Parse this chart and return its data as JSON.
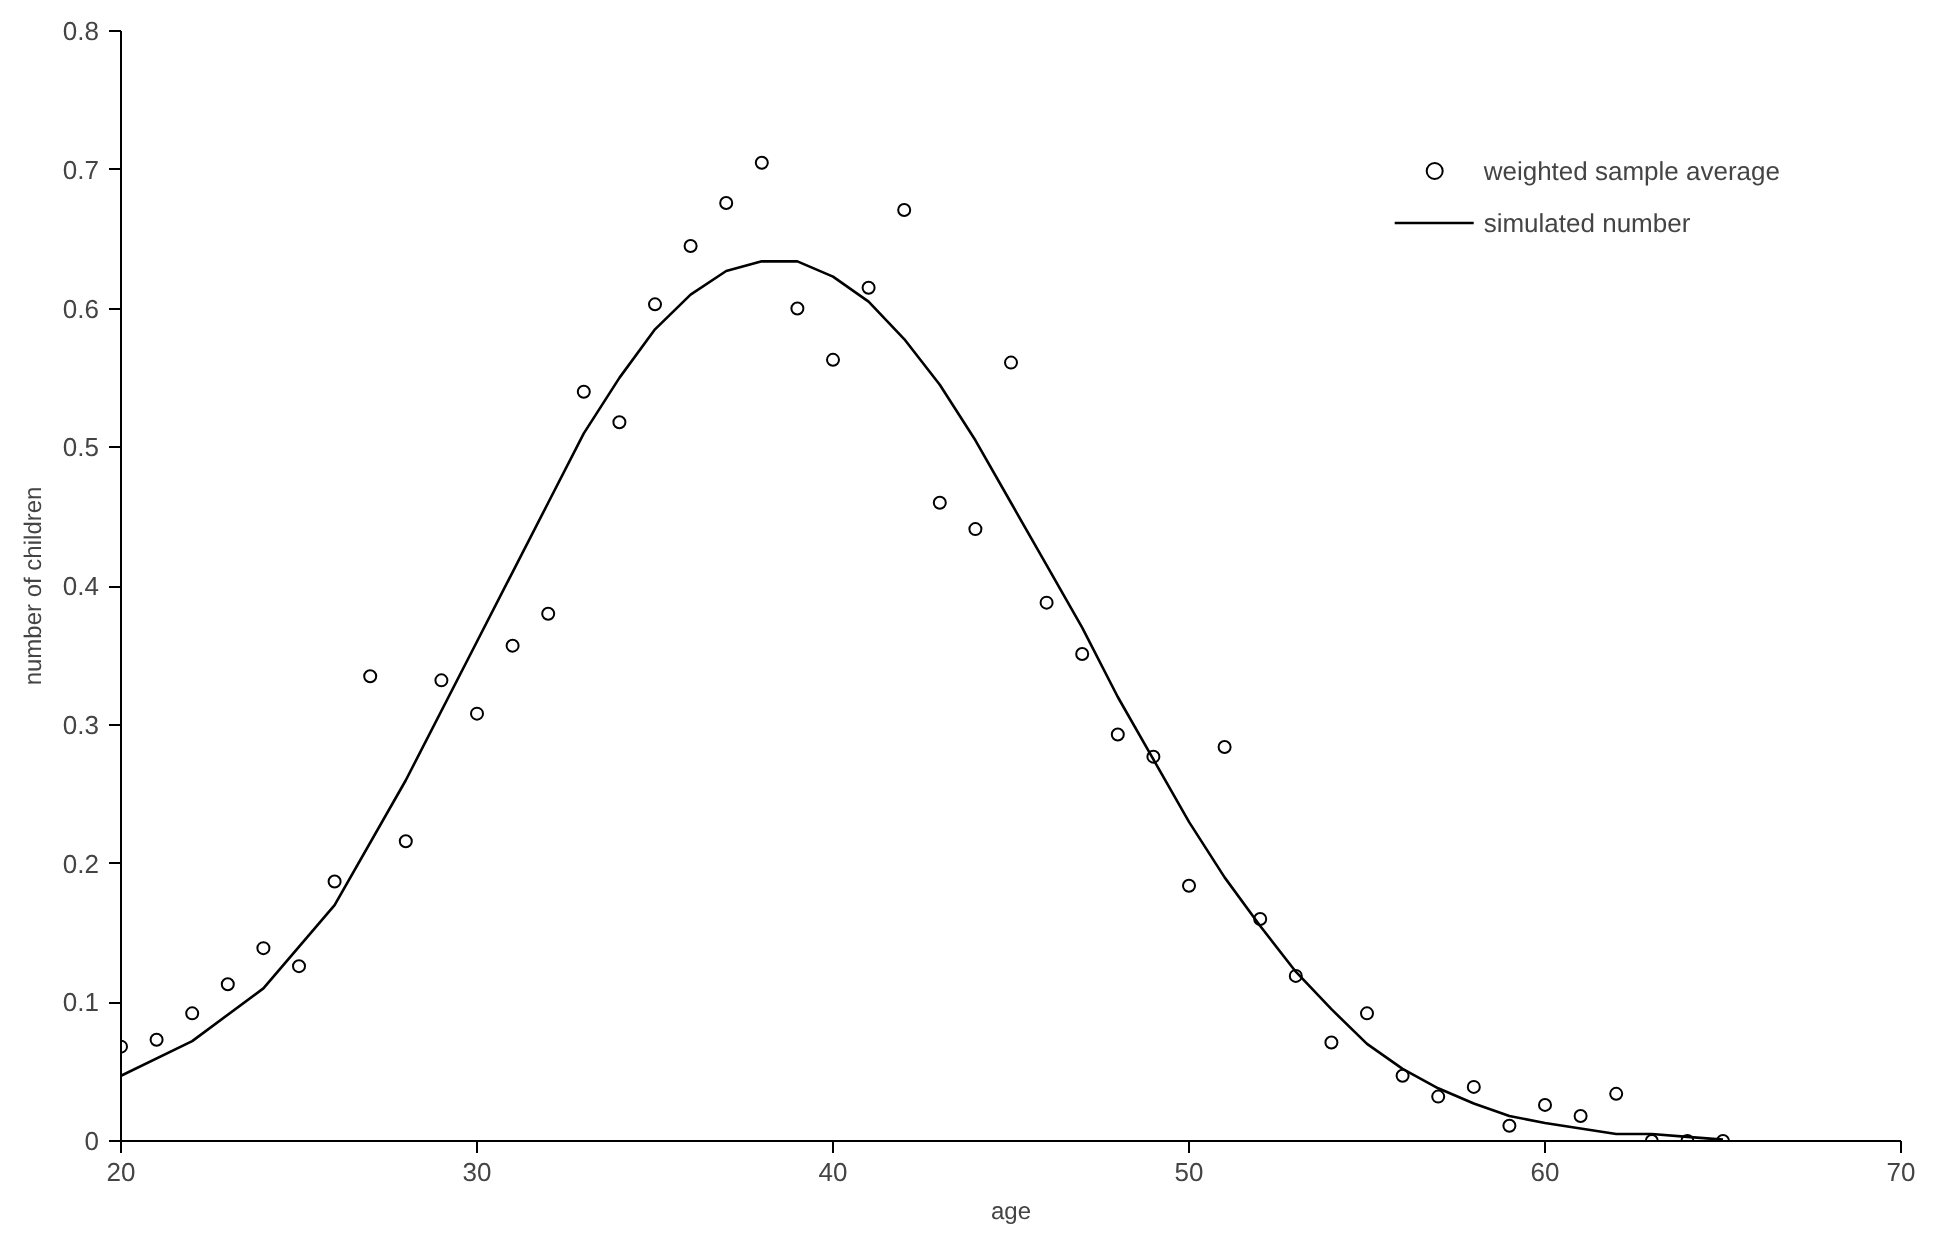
{
  "chart_data": {
    "type": "scatter",
    "xlabel": "age",
    "ylabel": "number of children",
    "xlim": [
      20,
      70
    ],
    "ylim": [
      0,
      0.8
    ],
    "xticks": [
      20,
      30,
      40,
      50,
      60,
      70
    ],
    "yticks": [
      0,
      0.1,
      0.2,
      0.3,
      0.4,
      0.5,
      0.6,
      0.7,
      0.8
    ],
    "grid": false,
    "legend": "top right",
    "series": [
      {
        "name": "weighted sample average",
        "marker": "circle",
        "color": "#000000",
        "x": [
          20,
          21,
          22,
          23,
          24,
          25,
          26,
          27,
          28,
          29,
          30,
          31,
          32,
          33,
          34,
          35,
          36,
          37,
          38,
          39,
          40,
          41,
          42,
          43,
          44,
          45,
          46,
          47,
          48,
          49,
          50,
          51,
          52,
          53,
          54,
          55,
          56,
          57,
          58,
          59,
          60,
          61,
          62,
          63,
          64,
          65
        ],
        "values": [
          0.068,
          0.073,
          0.092,
          0.113,
          0.139,
          0.126,
          0.187,
          0.335,
          0.216,
          0.332,
          0.308,
          0.357,
          0.38,
          0.54,
          0.518,
          0.603,
          0.645,
          0.676,
          0.705,
          0.6,
          0.563,
          0.615,
          0.671,
          0.46,
          0.441,
          0.561,
          0.388,
          0.351,
          0.293,
          0.277,
          0.184,
          0.284,
          0.16,
          0.119,
          0.071,
          0.092,
          0.047,
          0.032,
          0.039,
          0.011,
          0.026,
          0.018,
          0.034,
          0.0,
          0.0,
          0.0
        ]
      },
      {
        "name": "simulated number",
        "type": "line",
        "marker": "none",
        "line_style": "solid",
        "color": "#000000",
        "x": [
          20,
          22,
          24,
          26,
          28,
          30,
          32,
          33,
          34,
          35,
          36,
          37,
          38,
          39,
          40,
          41,
          42,
          43,
          44,
          45,
          46,
          47,
          48,
          49,
          50,
          51,
          52,
          53,
          54,
          55,
          56,
          57,
          58,
          59,
          60,
          61,
          62,
          63,
          64,
          65
        ],
        "values": [
          0.047,
          0.072,
          0.11,
          0.17,
          0.26,
          0.36,
          0.46,
          0.51,
          0.55,
          0.585,
          0.61,
          0.627,
          0.634,
          0.634,
          0.623,
          0.605,
          0.578,
          0.545,
          0.505,
          0.46,
          0.415,
          0.37,
          0.32,
          0.275,
          0.23,
          0.19,
          0.155,
          0.122,
          0.095,
          0.07,
          0.052,
          0.038,
          0.027,
          0.018,
          0.013,
          0.009,
          0.005,
          0.005,
          0.003,
          0.001
        ]
      }
    ]
  }
}
